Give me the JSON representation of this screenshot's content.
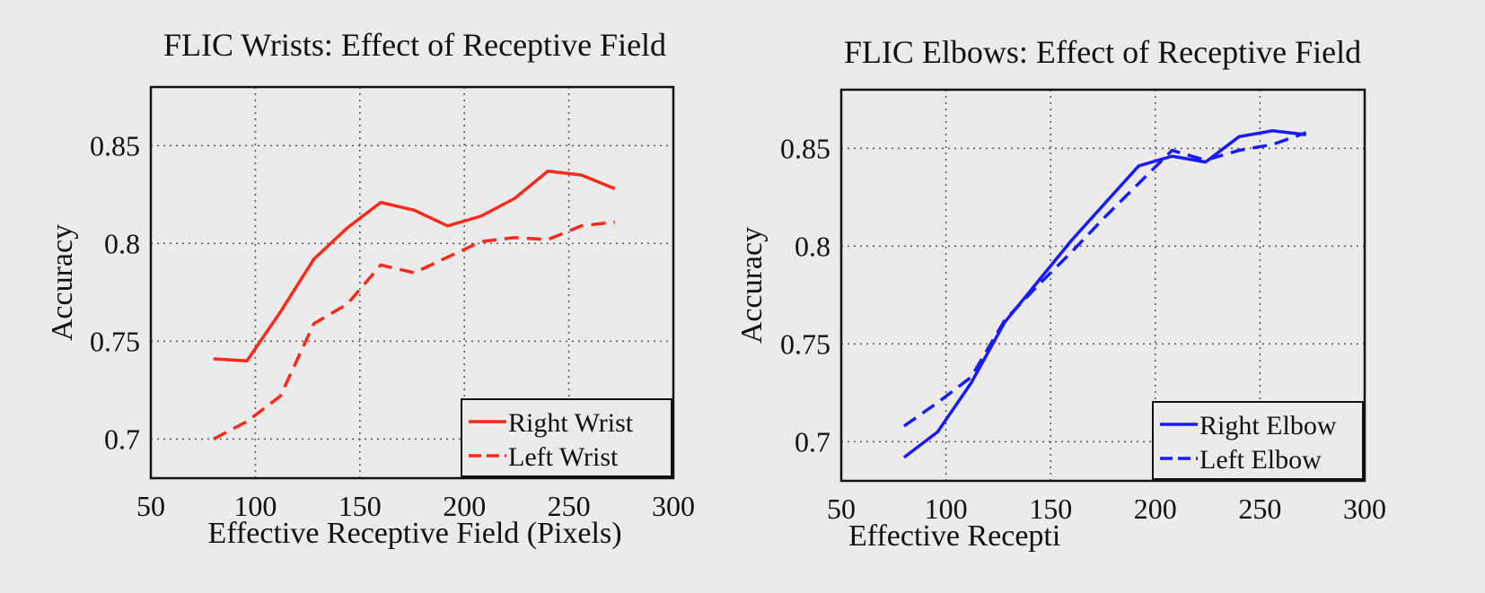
{
  "chart_data": [
    {
      "type": "line",
      "title": "FLIC Wrists: Effect of Receptive Field",
      "xlabel": "Effective Receptive Field (Pixels)",
      "ylabel": "Accuracy",
      "xlim": [
        50,
        300
      ],
      "ylim": [
        0.68,
        0.88
      ],
      "xticks": [
        "50",
        "100",
        "150",
        "200",
        "250",
        "300"
      ],
      "yticks": [
        "0.7",
        "0.75",
        "0.8",
        "0.85"
      ],
      "grid": true,
      "legend_position": "bottom-right",
      "color": "#ff2a1a",
      "x": [
        80,
        96,
        112,
        128,
        144,
        160,
        176,
        192,
        208,
        224,
        240,
        256,
        272
      ],
      "series": [
        {
          "name": "Right Wrist",
          "style": "solid",
          "values": [
            0.741,
            0.74,
            0.765,
            0.792,
            0.808,
            0.821,
            0.817,
            0.809,
            0.814,
            0.823,
            0.837,
            0.835,
            0.828
          ]
        },
        {
          "name": "Left Wrist",
          "style": "dashed",
          "values": [
            0.7,
            0.709,
            0.722,
            0.759,
            0.769,
            0.789,
            0.785,
            0.793,
            0.801,
            0.803,
            0.802,
            0.809,
            0.811
          ]
        }
      ]
    },
    {
      "type": "line",
      "title": "FLIC Elbows: Effect of Receptive Field",
      "xlabel": "Effective Recepti",
      "ylabel": "Accuracy",
      "xlim": [
        50,
        300
      ],
      "ylim": [
        0.68,
        0.88
      ],
      "xticks": [
        "50",
        "100",
        "150",
        "200",
        "250",
        "300"
      ],
      "yticks": [
        "0.7",
        "0.75",
        "0.8",
        "0.85"
      ],
      "grid": true,
      "legend_position": "bottom-right",
      "color": "#1a1aff",
      "x": [
        80,
        96,
        112,
        128,
        144,
        160,
        176,
        192,
        208,
        224,
        240,
        256,
        272
      ],
      "series": [
        {
          "name": "Right Elbow",
          "style": "solid",
          "values": [
            0.692,
            0.705,
            0.73,
            0.761,
            0.782,
            0.803,
            0.822,
            0.841,
            0.846,
            0.843,
            0.856,
            0.859,
            0.857
          ]
        },
        {
          "name": "Left Elbow",
          "style": "dashed",
          "values": [
            0.708,
            0.72,
            0.733,
            0.762,
            0.78,
            0.797,
            0.815,
            0.832,
            0.849,
            0.844,
            0.849,
            0.852,
            0.858
          ]
        }
      ]
    }
  ]
}
